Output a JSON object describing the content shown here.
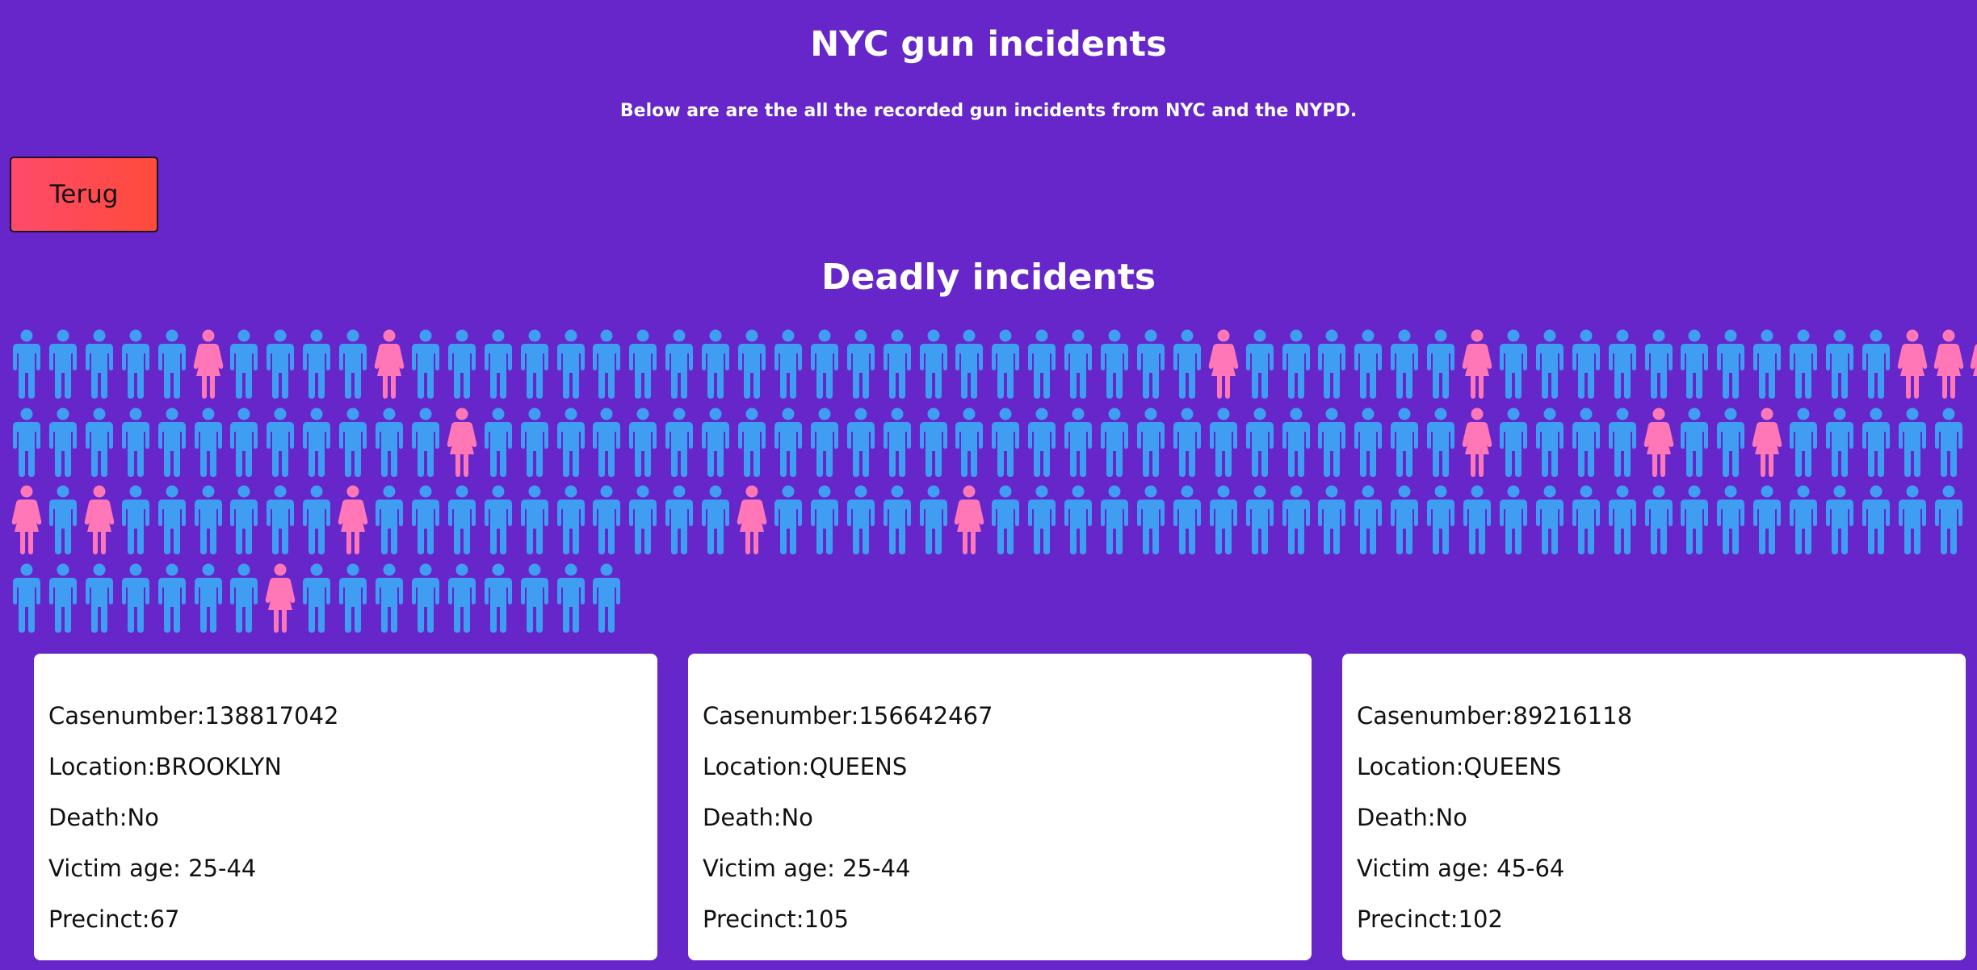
{
  "page": {
    "title": "NYC gun incidents",
    "subtitle": "Below are are the all the recorded gun incidents from NYC and the NYPD.",
    "back_button_label": "Terug",
    "section_title": "Deadly incidents"
  },
  "colors": {
    "background": "#6626c9",
    "male": "#3f9ef1",
    "female": "#ff77b6",
    "button": "#ff4a56"
  },
  "pictogram": {
    "icons_per_row": 54,
    "legend_note": "",
    "rows": [
      "mmmmmfmmmmfmmmmmmmmmmmmmmmmmmmmmmfmmmmmmfmmmmmmmmmmmfff",
      "mmmmmmmmmmmmfmmmmmmmmmmmmmmmmmmmmmmmmmmmfmmmmfmmfmmmmm",
      "fmfmmmmmmfmmmmmmmmmmfmmmmmfmmmmmmmmmmmmmmmmmmmmmmmmmmm",
      "mmmmmmmfmmmmmmmmm"
    ]
  },
  "incidents": [
    {
      "casenumber": "Casenumber:138817042",
      "location": "Location:BROOKLYN",
      "death": "Death:No",
      "victim_age": "Victim age: 25-44",
      "precinct": "Precinct:67"
    },
    {
      "casenumber": "Casenumber:156642467",
      "location": "Location:QUEENS",
      "death": "Death:No",
      "victim_age": "Victim age: 25-44",
      "precinct": "Precinct:105"
    },
    {
      "casenumber": "Casenumber:89216118",
      "location": "Location:QUEENS",
      "death": "Death:No",
      "victim_age": "Victim age: 45-64",
      "precinct": "Precinct:102"
    }
  ]
}
